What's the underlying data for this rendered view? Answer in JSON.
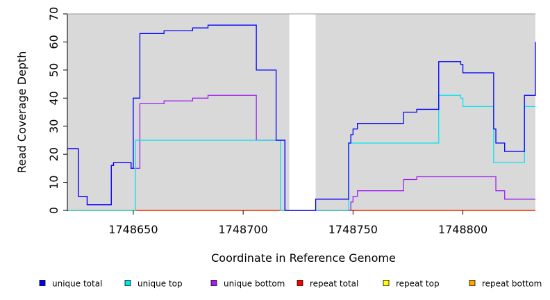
{
  "chart_data": {
    "type": "line",
    "step": true,
    "xlabel": "Coordinate in Reference Genome",
    "ylabel": "Read Coverage Depth",
    "xlim": [
      1748620,
      1748833
    ],
    "ylim": [
      0,
      70
    ],
    "x_ticks": [
      {
        "value": 1748650,
        "label": "1748650"
      },
      {
        "value": 1748700,
        "label": "1748700"
      },
      {
        "value": 1748750,
        "label": "1748750"
      },
      {
        "value": 1748800,
        "label": "1748800"
      }
    ],
    "y_ticks": [
      {
        "value": 0,
        "label": "0"
      },
      {
        "value": 10,
        "label": "10"
      },
      {
        "value": 20,
        "label": "20"
      },
      {
        "value": 30,
        "label": "30"
      },
      {
        "value": 40,
        "label": "40"
      },
      {
        "value": 50,
        "label": "50"
      },
      {
        "value": 60,
        "label": "60"
      },
      {
        "value": 70,
        "label": "70"
      }
    ],
    "background_color": "#d9d9d9",
    "gap_regions": [
      [
        1748721,
        1748733
      ]
    ],
    "series": [
      {
        "name": "unique total",
        "color": "#0000ff",
        "points": [
          [
            1748620,
            22
          ],
          [
            1748625,
            5
          ],
          [
            1748629,
            2
          ],
          [
            1748640,
            16
          ],
          [
            1748641,
            17
          ],
          [
            1748649,
            15
          ],
          [
            1748650,
            40
          ],
          [
            1748653,
            63
          ],
          [
            1748664,
            64
          ],
          [
            1748677,
            65
          ],
          [
            1748684,
            66
          ],
          [
            1748706,
            50
          ],
          [
            1748715,
            25
          ],
          [
            1748719,
            0
          ],
          [
            1748733,
            4
          ],
          [
            1748748,
            24
          ],
          [
            1748749,
            27
          ],
          [
            1748750,
            29
          ],
          [
            1748752,
            31
          ],
          [
            1748773,
            35
          ],
          [
            1748779,
            36
          ],
          [
            1748789,
            53
          ],
          [
            1748799,
            52
          ],
          [
            1748800,
            49
          ],
          [
            1748814,
            29
          ],
          [
            1748815,
            24
          ],
          [
            1748819,
            21
          ],
          [
            1748828,
            41
          ],
          [
            1748833,
            60
          ]
        ]
      },
      {
        "name": "unique top",
        "color": "#00e5ee",
        "points": [
          [
            1748620,
            0
          ],
          [
            1748651,
            25
          ],
          [
            1748717,
            0
          ],
          [
            1748748,
            24
          ],
          [
            1748789,
            41
          ],
          [
            1748799,
            40
          ],
          [
            1748800,
            37
          ],
          [
            1748814,
            17
          ],
          [
            1748828,
            37
          ],
          [
            1748833,
            37
          ]
        ]
      },
      {
        "name": "unique bottom",
        "color": "#a020f0",
        "points": [
          [
            1748620,
            22
          ],
          [
            1748625,
            5
          ],
          [
            1748629,
            2
          ],
          [
            1748640,
            16
          ],
          [
            1748641,
            17
          ],
          [
            1748649,
            15
          ],
          [
            1748653,
            38
          ],
          [
            1748664,
            39
          ],
          [
            1748677,
            40
          ],
          [
            1748684,
            41
          ],
          [
            1748706,
            25
          ],
          [
            1748719,
            0
          ],
          [
            1748749,
            3
          ],
          [
            1748750,
            5
          ],
          [
            1748752,
            7
          ],
          [
            1748773,
            11
          ],
          [
            1748779,
            12
          ],
          [
            1748815,
            7
          ],
          [
            1748819,
            4
          ],
          [
            1748833,
            4
          ]
        ]
      },
      {
        "name": "repeat total",
        "color": "#ff0000",
        "points": [
          [
            1748620,
            0
          ],
          [
            1748833,
            0
          ]
        ]
      },
      {
        "name": "repeat top",
        "color": "#ffff00",
        "points": [
          [
            1748620,
            0
          ],
          [
            1748833,
            0
          ]
        ]
      },
      {
        "name": "repeat bottom",
        "color": "#ffa500",
        "points": [
          [
            1748620,
            0
          ],
          [
            1748833,
            0
          ]
        ]
      }
    ],
    "legend": {
      "placement": "bottom",
      "items": [
        {
          "label": "unique total",
          "color": "#0000ff"
        },
        {
          "label": "unique top",
          "color": "#00e5ee"
        },
        {
          "label": "unique bottom",
          "color": "#a020f0"
        },
        {
          "label": "repeat total",
          "color": "#ff0000"
        },
        {
          "label": "repeat top",
          "color": "#ffff00"
        },
        {
          "label": "repeat bottom",
          "color": "#ffa500"
        }
      ]
    }
  }
}
